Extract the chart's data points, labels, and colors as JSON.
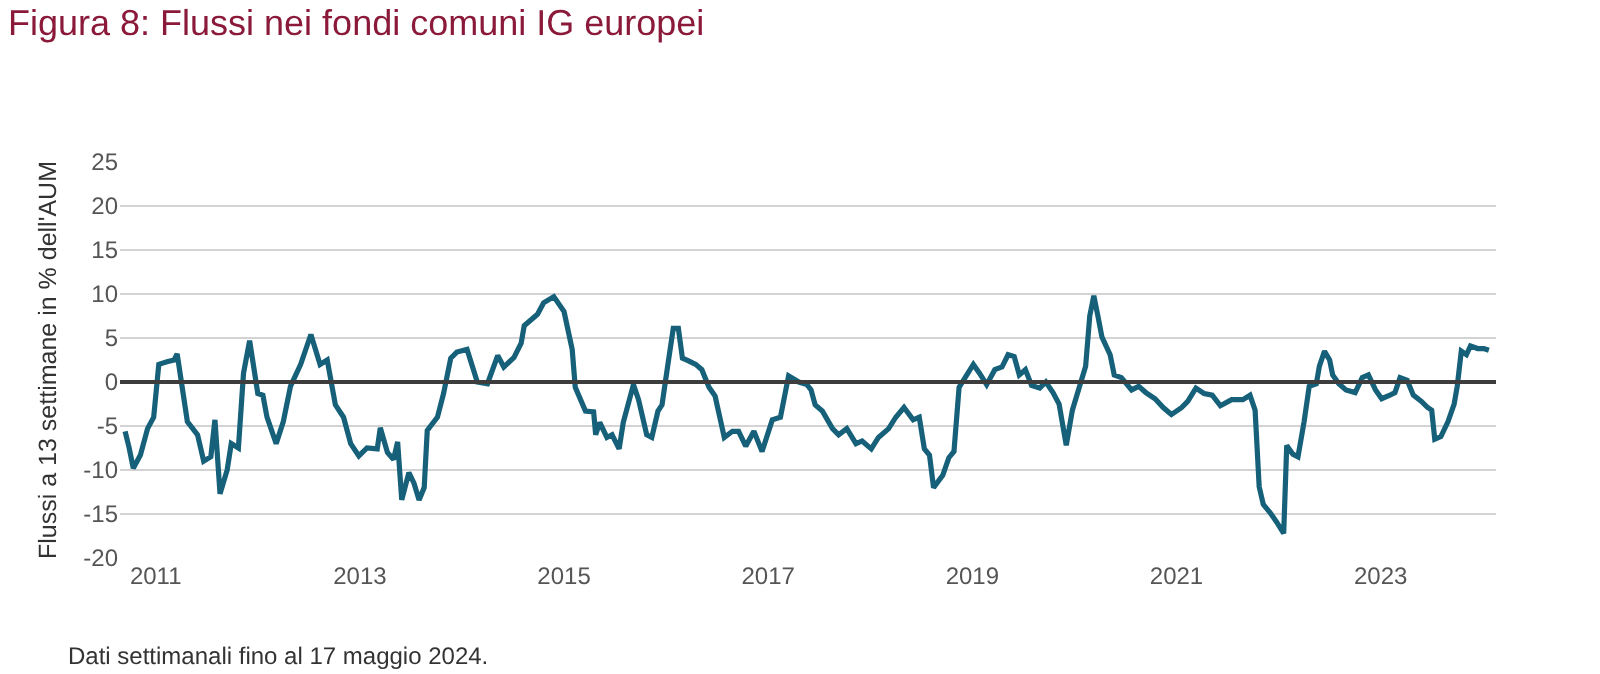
{
  "chart_data": {
    "type": "line",
    "title": "Figura 8: Flussi nei fondi comuni IG europei",
    "ylabel": "Flussi a 13 settimane in % dell'AUM",
    "annotations": [
      "Dati settimanali fino al 17 maggio 2024."
    ],
    "series": [
      {
        "color": "#16607a",
        "x": [
          2010.7,
          2010.74,
          2010.78,
          2010.85,
          2010.92,
          2010.98,
          2011.03,
          2011.11,
          2011.18,
          2011.21,
          2011.31,
          2011.41,
          2011.47,
          2011.54,
          2011.58,
          2011.63,
          2011.7,
          2011.74,
          2011.81,
          2011.86,
          2011.92,
          2012.0,
          2012.05,
          2012.09,
          2012.18,
          2012.25,
          2012.32,
          2012.42,
          2012.52,
          2012.61,
          2012.68,
          2012.76,
          2012.84,
          2012.91,
          2012.99,
          2013.07,
          2013.17,
          2013.2,
          2013.27,
          2013.33,
          2013.37,
          2013.41,
          2013.48,
          2013.53,
          2013.58,
          2013.63,
          2013.66,
          2013.76,
          2013.82,
          2013.89,
          2013.95,
          2014.05,
          2014.15,
          2014.25,
          2014.35,
          2014.41,
          2014.51,
          2014.58,
          2014.61,
          2014.74,
          2014.8,
          2014.9,
          2015.0,
          2015.08,
          2015.11,
          2015.21,
          2015.29,
          2015.31,
          2015.35,
          2015.42,
          2015.47,
          2015.54,
          2015.58,
          2015.68,
          2015.73,
          2015.81,
          2015.86,
          2015.92,
          2015.96,
          2016.01,
          2016.07,
          2016.12,
          2016.16,
          2016.22,
          2016.29,
          2016.35,
          2016.42,
          2016.48,
          2016.57,
          2016.65,
          2016.71,
          2016.78,
          2016.86,
          2016.94,
          2017.04,
          2017.12,
          2017.2,
          2017.3,
          2017.38,
          2017.42,
          2017.46,
          2017.53,
          2017.63,
          2017.69,
          2017.77,
          2017.86,
          2017.92,
          2018.01,
          2018.08,
          2018.18,
          2018.25,
          2018.33,
          2018.42,
          2018.48,
          2018.53,
          2018.58,
          2018.62,
          2018.71,
          2018.77,
          2018.82,
          2018.87,
          2018.94,
          2019.01,
          2019.07,
          2019.14,
          2019.22,
          2019.29,
          2019.35,
          2019.41,
          2019.46,
          2019.52,
          2019.58,
          2019.66,
          2019.72,
          2019.79,
          2019.85,
          2019.92,
          2019.98,
          2020.05,
          2020.11,
          2020.15,
          2020.19,
          2020.23,
          2020.27,
          2020.35,
          2020.39,
          2020.46,
          2020.56,
          2020.63,
          2020.7,
          2020.79,
          2020.87,
          2020.95,
          2021.05,
          2021.11,
          2021.19,
          2021.27,
          2021.35,
          2021.43,
          2021.54,
          2021.65,
          2021.72,
          2021.77,
          2021.81,
          2021.85,
          2021.92,
          2021.98,
          2022.05,
          2022.08,
          2022.14,
          2022.19,
          2022.25,
          2022.3,
          2022.37,
          2022.4,
          2022.45,
          2022.5,
          2022.53,
          2022.59,
          2022.66,
          2022.75,
          2022.82,
          2022.88,
          2022.95,
          2023.01,
          2023.09,
          2023.14,
          2023.19,
          2023.26,
          2023.32,
          2023.4,
          2023.46,
          2023.5,
          2023.53,
          2023.59,
          2023.66,
          2023.72,
          2023.75,
          2023.79,
          2023.84,
          2023.88,
          2023.95,
          2024.01,
          2024.06
        ],
        "values": [
          -5.6,
          -7.5,
          -9.8,
          -8.3,
          -5.3,
          -4.0,
          2.0,
          2.3,
          2.5,
          3.2,
          -4.5,
          -6.0,
          -9.0,
          -8.5,
          -4.3,
          -12.7,
          -10.0,
          -7.0,
          -7.5,
          1.0,
          4.7,
          -1.3,
          -1.5,
          -4.0,
          -7.0,
          -4.5,
          -0.5,
          2.0,
          5.4,
          2.0,
          2.5,
          -2.6,
          -4.0,
          -7.0,
          -8.4,
          -7.5,
          -7.6,
          -5.2,
          -8.0,
          -8.8,
          -6.8,
          -13.4,
          -10.3,
          -11.5,
          -13.4,
          -12.0,
          -5.5,
          -4.0,
          -1.3,
          2.7,
          3.4,
          3.7,
          0.0,
          -0.2,
          3.0,
          1.7,
          2.8,
          4.4,
          6.4,
          7.7,
          9.0,
          9.7,
          8.0,
          3.7,
          -0.6,
          -3.3,
          -3.4,
          -6.0,
          -4.6,
          -6.3,
          -6.0,
          -7.6,
          -4.6,
          -0.3,
          -2.0,
          -6.0,
          -6.3,
          -3.3,
          -2.6,
          1.4,
          6.1,
          6.1,
          2.7,
          2.4,
          2.0,
          1.4,
          -0.6,
          -1.6,
          -6.3,
          -5.6,
          -5.6,
          -7.3,
          -5.6,
          -7.9,
          -4.3,
          -4.0,
          0.7,
          0.0,
          -0.3,
          -0.9,
          -2.6,
          -3.3,
          -5.3,
          -6.0,
          -5.3,
          -7.0,
          -6.7,
          -7.6,
          -6.3,
          -5.3,
          -4.0,
          -2.9,
          -4.3,
          -4.0,
          -7.6,
          -8.3,
          -12.0,
          -10.6,
          -8.6,
          -7.9,
          -0.6,
          0.7,
          2.0,
          1.0,
          -0.3,
          1.4,
          1.7,
          3.1,
          2.9,
          0.8,
          1.4,
          -0.4,
          -0.7,
          0.0,
          -1.2,
          -2.5,
          -7.2,
          -3.2,
          -0.5,
          1.8,
          7.5,
          9.8,
          7.5,
          5.1,
          3.1,
          0.8,
          0.5,
          -0.9,
          -0.5,
          -1.2,
          -1.9,
          -2.9,
          -3.7,
          -2.9,
          -2.2,
          -0.7,
          -1.3,
          -1.5,
          -2.7,
          -2.0,
          -2.0,
          -1.5,
          -3.2,
          -11.9,
          -13.9,
          -14.9,
          -15.9,
          -17.2,
          -7.2,
          -8.2,
          -8.5,
          -4.5,
          -0.5,
          -0.2,
          1.8,
          3.5,
          2.5,
          0.8,
          -0.2,
          -0.9,
          -1.2,
          0.5,
          0.8,
          -0.9,
          -1.9,
          -1.5,
          -1.2,
          0.5,
          0.2,
          -1.5,
          -2.2,
          -2.9,
          -3.2,
          -6.5,
          -6.2,
          -4.5,
          -2.5,
          -0.5,
          3.5,
          3.1,
          4.1,
          3.8,
          3.8,
          3.6
        ]
      }
    ],
    "xlim": [
      2010.65,
      2024.13
    ],
    "xticks": [
      2011,
      2013,
      2015,
      2017,
      2019,
      2021,
      2023
    ],
    "ylim": [
      -20,
      25
    ],
    "yticks": [
      -20,
      -15,
      -10,
      -5,
      0,
      5,
      10,
      15,
      20,
      25
    ],
    "ref_lines": [
      {
        "axis": "y",
        "value": 0,
        "color": "#3d3d3d"
      }
    ],
    "grid": "y",
    "line_style": "solid",
    "marker": "none"
  }
}
